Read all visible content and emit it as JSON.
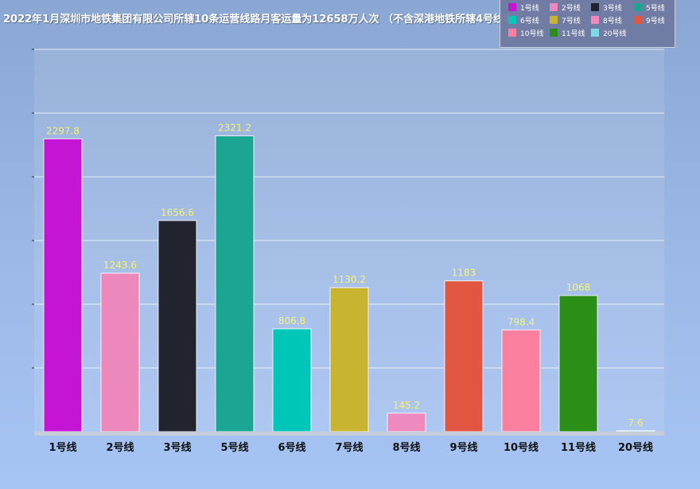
{
  "chart_data": {
    "type": "bar",
    "title": "2022年1月深圳市地铁集团有限公司所辖10条运营线路月客运量为12658万人次 （不含深港地铁所辖4号线客运量）",
    "xlabel": "",
    "ylabel": "",
    "ylim": [
      0,
      3000
    ],
    "grid": true,
    "legend_position": "top-right",
    "categories": [
      "1号线",
      "2号线",
      "3号线",
      "5号线",
      "6号线",
      "7号线",
      "8号线",
      "9号线",
      "10号线",
      "11号线",
      "20号线"
    ],
    "values": [
      2297.8,
      1243.6,
      1656.6,
      2321.2,
      806.8,
      1130.2,
      145.2,
      1183,
      798.4,
      1068,
      7.6
    ],
    "data_labels": [
      "2297.8",
      "1243.6",
      "1656.6",
      "2321.2",
      "806.8",
      "1130.2",
      "145.2",
      "1183",
      "798.4",
      "1068",
      "7.6"
    ],
    "colors": [
      "#c415d4",
      "#ec88bc",
      "#21242e",
      "#1aa693",
      "#00c6b8",
      "#c8b430",
      "#ee8abd",
      "#e05641",
      "#fb7f9f",
      "#2b8f17",
      "#7fd9e6"
    ],
    "label_color": "#f5f07a"
  }
}
